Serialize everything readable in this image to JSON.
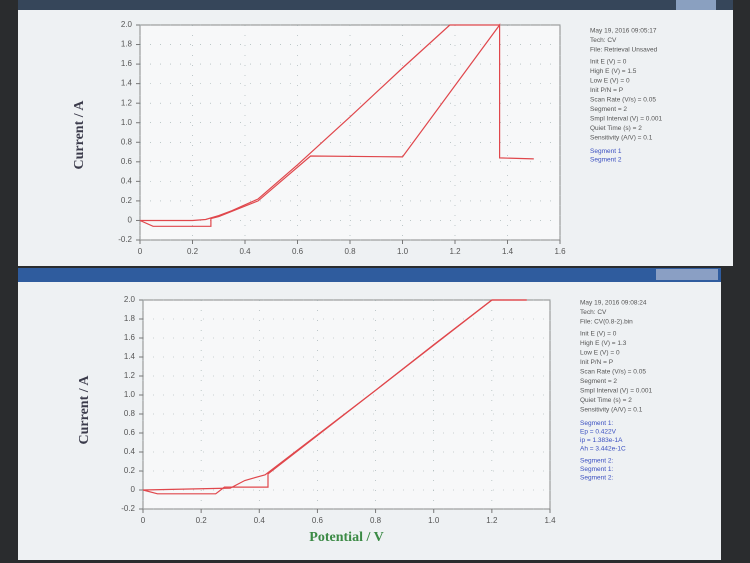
{
  "chart_data": [
    {
      "type": "line",
      "ylabel": "Current / A",
      "xlim": [
        0,
        1.6
      ],
      "xticks": [
        0,
        0.2,
        0.4,
        0.6,
        0.8,
        {
          "value": 1,
          "label": "1.0"
        },
        1.2,
        1.4,
        1.6
      ],
      "ylim": [
        -0.2,
        2
      ],
      "yticks": [
        -0.2,
        0,
        0.2,
        0.4,
        0.6,
        0.8,
        {
          "value": 1,
          "label": "1.0"
        },
        1.2,
        1.4,
        1.6,
        1.8,
        {
          "value": 2,
          "label": "2.0"
        }
      ],
      "grid": true,
      "info": [
        "May 19, 2016  09:05:17",
        "Tech: CV",
        "File: Retrieval Unsaved",
        "Init E (V) = 0",
        "High E (V) = 1.5",
        "Low E (V) = 0",
        "Init P/N = P",
        "Scan Rate (V/s) = 0.05",
        "Segment = 2",
        "Smpl Interval (V) = 0.001",
        "Quiet Time (s) = 2",
        "Sensitivity (A/V) = 0.1"
      ],
      "series": [
        {
          "name": "Segment 1",
          "color": "#e0474c",
          "x": [
            0,
            0.1,
            0.2,
            0.25,
            0.3,
            0.35,
            0.4,
            0.45,
            0.6,
            0.8,
            1.0,
            1.18,
            1.3,
            1.37
          ],
          "values": [
            0,
            0,
            0,
            0.01,
            0.05,
            0.1,
            0.16,
            0.22,
            0.57,
            1.06,
            1.56,
            2.0,
            2.0,
            2.0
          ]
        },
        {
          "name": "Segment 2",
          "color": "#e0474c",
          "x": [
            1.5,
            1.37,
            1.37,
            1.0,
            0.65,
            0.45,
            0.3,
            0.27,
            0.27,
            0.05,
            0
          ],
          "values": [
            0.63,
            0.64,
            2.0,
            0.65,
            0.66,
            0.2,
            0.04,
            0.02,
            -0.06,
            -0.06,
            0
          ]
        }
      ]
    },
    {
      "type": "line",
      "ylabel": "Current / A",
      "xlabel": "Potential / V",
      "xlim": [
        0,
        1.4
      ],
      "xticks": [
        0,
        0.2,
        0.4,
        0.6,
        0.8,
        {
          "value": 1,
          "label": "1.0"
        },
        1.2,
        1.4
      ],
      "ylim": [
        -0.2,
        2
      ],
      "yticks": [
        -0.2,
        0,
        0.2,
        0.4,
        0.6,
        0.8,
        {
          "value": 1,
          "label": "1.0"
        },
        1.2,
        1.4,
        1.6,
        1.8,
        {
          "value": 2,
          "label": "2.0"
        }
      ],
      "grid": true,
      "info": [
        "May 19, 2016  09:08:24",
        "Tech: CV",
        "File: CV(0.8-2).bin",
        "Init E (V) = 0",
        "High E (V) = 1.3",
        "Low E (V) = 0",
        "Init P/N = P",
        "Scan Rate (V/s) = 0.05",
        "Segment = 2",
        "Smpl Interval (V) = 0.001",
        "Quiet Time (s) = 2",
        "Sensitivity (A/V) = 0.1"
      ],
      "annotations": [
        "Segment 1:",
        "Ep = 0.422V",
        "ip = 1.383e-1A",
        "Ah = 3.442e-1C",
        "Segment 2:"
      ],
      "series": [
        {
          "name": "Segment 1:",
          "color": "#e0474c",
          "x": [
            0,
            0.3,
            0.35,
            0.42,
            0.6,
            0.8,
            1.0,
            1.2,
            1.32
          ],
          "values": [
            0,
            0.02,
            0.1,
            0.16,
            0.58,
            1.05,
            1.53,
            2.0,
            2.0
          ]
        },
        {
          "name": "Segment 2:",
          "color": "#e0474c",
          "x": [
            1.32,
            1.2,
            0.8,
            0.43,
            0.43,
            0.28,
            0.25,
            0.05,
            0
          ],
          "values": [
            2.0,
            2.0,
            1.05,
            0.17,
            0.03,
            0.03,
            -0.04,
            -0.04,
            0
          ]
        }
      ]
    }
  ]
}
